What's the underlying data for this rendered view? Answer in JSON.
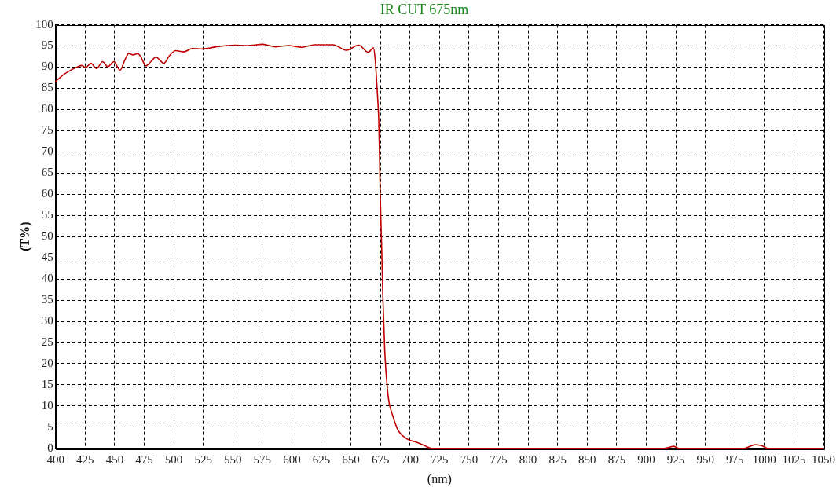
{
  "chart_data": {
    "type": "line",
    "title": "IR CUT 675nm",
    "xlabel": "(nm)",
    "ylabel": "(T%)",
    "x": [
      400,
      405.6,
      412.2,
      418.8,
      422.2,
      425.5,
      429.9,
      434.7,
      439.8,
      444.2,
      449.3,
      454.6,
      458.5,
      461.9,
      465.6,
      469.6,
      471.8,
      476.6,
      480.6,
      485.1,
      488.4,
      491.7,
      496.1,
      501.6,
      508.2,
      515.9,
      524.7,
      535.7,
      551.2,
      562.2,
      575.4,
      586.4,
      597.4,
      608.5,
      619.5,
      634.9,
      646,
      656.6,
      664.7,
      669.1,
      670.5,
      671.5,
      672.8,
      673.5,
      674.2,
      674.8,
      676,
      677.1,
      678.7,
      681,
      682.5,
      684.5,
      689.5,
      697,
      706,
      712,
      718,
      915,
      920,
      923,
      926,
      928,
      983,
      988,
      993,
      998,
      1003,
      1050
    ],
    "values": [
      86.6,
      88.0,
      89.2,
      90.1,
      90.4,
      89.9,
      90.9,
      89.7,
      91.3,
      90.1,
      91.3,
      89.3,
      91.6,
      93.2,
      92.9,
      93.2,
      92.6,
      90.3,
      91.3,
      92.4,
      91.6,
      90.9,
      92.6,
      93.9,
      93.6,
      94.4,
      94.3,
      94.8,
      95.2,
      95.1,
      95.4,
      94.8,
      95.1,
      94.7,
      95.3,
      95.3,
      94.0,
      95.2,
      93.5,
      94.6,
      92.0,
      88.0,
      82.0,
      78.0,
      70.0,
      60.0,
      47.8,
      35.2,
      22.6,
      13.7,
      10.5,
      8.5,
      4.5,
      2.3,
      1.4,
      0.7,
      0,
      0,
      0.3,
      0.5,
      0.2,
      0,
      0,
      0.5,
      0.9,
      0.6,
      0,
      0
    ],
    "color": "#c00000",
    "xlim": [
      400,
      1050
    ],
    "xticks": [
      400,
      425,
      450,
      475,
      500,
      525,
      550,
      575,
      600,
      625,
      650,
      675,
      700,
      725,
      750,
      775,
      800,
      825,
      850,
      875,
      900,
      925,
      950,
      975,
      1000,
      1025,
      1050
    ],
    "ylim": [
      0,
      100
    ],
    "yticks": [
      0,
      5,
      10,
      15,
      20,
      25,
      30,
      35,
      40,
      45,
      50,
      55,
      60,
      65,
      70,
      75,
      80,
      85,
      90,
      95,
      100
    ],
    "grid": true,
    "legend": false,
    "marker": "none",
    "line_style": "solid"
  }
}
